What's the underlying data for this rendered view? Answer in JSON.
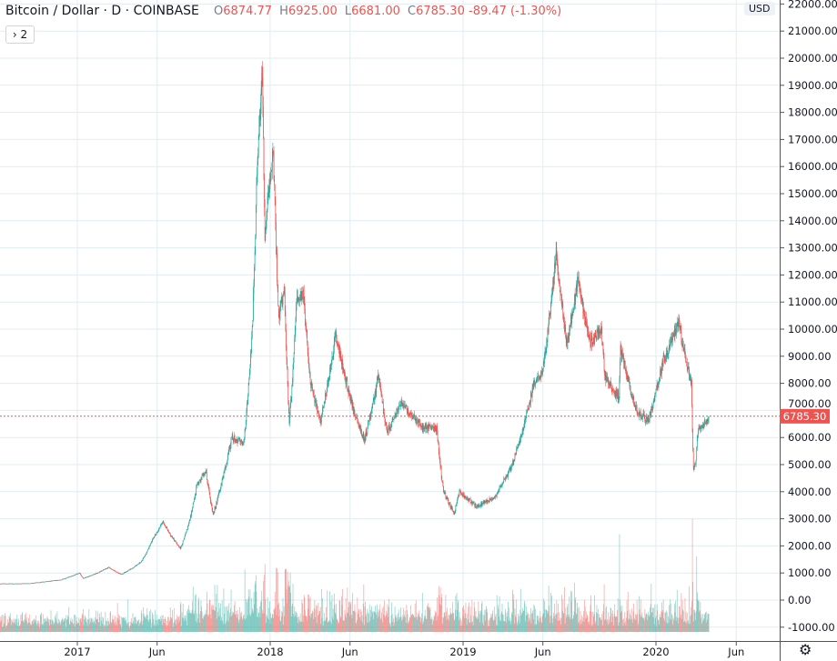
{
  "legend": {
    "title": "Bitcoin / Dollar · D · COINBASE",
    "open_label": "O",
    "open": "6874.77",
    "high_label": "H",
    "high": "6925.00",
    "low_label": "L",
    "low": "6681.00",
    "close_label": "C",
    "close": "6785.30",
    "change": "-89.47 (-1.30%)",
    "collapse_button": "› 2"
  },
  "currency_badge": "USD",
  "settings_icon": "gear-icon",
  "colors": {
    "up": "#26a69a",
    "down": "#ef5350",
    "grid": "#e1ecf2",
    "last_price": "#ef5350"
  },
  "chart_data": {
    "type": "candlestick",
    "interval": "D",
    "symbol": "Bitcoin / Dollar",
    "exchange": "COINBASE",
    "ylim": [
      -1200,
      22200
    ],
    "y_ticks": [
      "22000.00",
      "21000.00",
      "20000.00",
      "19000.00",
      "18000.00",
      "17000.00",
      "16000.00",
      "15000.00",
      "14000.00",
      "13000.00",
      "12000.00",
      "11000.00",
      "10000.00",
      "9000.00",
      "8000.00",
      "7000.00",
      "6000.00",
      "5000.00",
      "4000.00",
      "3000.00",
      "2000.00",
      "1000.00",
      "0.00",
      "-1000.00"
    ],
    "x_ticks": [
      {
        "label": "2017",
        "date": "2017-01-01"
      },
      {
        "label": "Jun",
        "date": "2017-06-01"
      },
      {
        "label": "2018",
        "date": "2018-01-01"
      },
      {
        "label": "Jun",
        "date": "2018-06-01"
      },
      {
        "label": "2019",
        "date": "2019-01-01"
      },
      {
        "label": "Jun",
        "date": "2019-06-01"
      },
      {
        "label": "2020",
        "date": "2020-01-01"
      },
      {
        "label": "Jun",
        "date": "2020-06-01"
      }
    ],
    "last_price": 6785.3,
    "last_price_label": "6785.30",
    "approx_close_path": [
      [
        "2016-07-20",
        600
      ],
      [
        "2016-10-01",
        610
      ],
      [
        "2016-12-01",
        750
      ],
      [
        "2017-01-05",
        1000
      ],
      [
        "2017-01-12",
        800
      ],
      [
        "2017-03-01",
        1200
      ],
      [
        "2017-03-25",
        950
      ],
      [
        "2017-05-01",
        1400
      ],
      [
        "2017-05-25",
        2300
      ],
      [
        "2017-06-12",
        2900
      ],
      [
        "2017-07-15",
        1900
      ],
      [
        "2017-08-15",
        4200
      ],
      [
        "2017-09-01",
        4800
      ],
      [
        "2017-09-15",
        3200
      ],
      [
        "2017-10-01",
        4300
      ],
      [
        "2017-10-20",
        6000
      ],
      [
        "2017-11-12",
        5800
      ],
      [
        "2017-11-28",
        10000
      ],
      [
        "2017-12-07",
        16000
      ],
      [
        "2017-12-17",
        19500
      ],
      [
        "2017-12-22",
        13500
      ],
      [
        "2017-12-28",
        15000
      ],
      [
        "2018-01-07",
        16500
      ],
      [
        "2018-01-17",
        10500
      ],
      [
        "2018-01-28",
        11500
      ],
      [
        "2018-02-06",
        6500
      ],
      [
        "2018-02-20",
        11200
      ],
      [
        "2018-03-05",
        11300
      ],
      [
        "2018-03-18",
        8000
      ],
      [
        "2018-04-06",
        6600
      ],
      [
        "2018-05-05",
        9800
      ],
      [
        "2018-06-01",
        7500
      ],
      [
        "2018-06-28",
        5900
      ],
      [
        "2018-07-25",
        8300
      ],
      [
        "2018-08-10",
        6200
      ],
      [
        "2018-09-05",
        7300
      ],
      [
        "2018-10-15",
        6400
      ],
      [
        "2018-11-12",
        6350
      ],
      [
        "2018-11-25",
        4000
      ],
      [
        "2018-12-15",
        3200
      ],
      [
        "2018-12-25",
        4000
      ],
      [
        "2019-01-28",
        3450
      ],
      [
        "2019-03-01",
        3800
      ],
      [
        "2019-04-02",
        4900
      ],
      [
        "2019-05-15",
        8000
      ],
      [
        "2019-06-01",
        8500
      ],
      [
        "2019-06-26",
        12900
      ],
      [
        "2019-07-16",
        9500
      ],
      [
        "2019-08-06",
        11800
      ],
      [
        "2019-08-30",
        9500
      ],
      [
        "2019-09-20",
        10000
      ],
      [
        "2019-09-26",
        8200
      ],
      [
        "2019-10-23",
        7500
      ],
      [
        "2019-10-26",
        9300
      ],
      [
        "2019-11-25",
        7000
      ],
      [
        "2019-12-18",
        6600
      ],
      [
        "2020-01-14",
        8800
      ],
      [
        "2020-02-13",
        10300
      ],
      [
        "2020-02-28",
        8700
      ],
      [
        "2020-03-08",
        8000
      ],
      [
        "2020-03-12",
        4900
      ],
      [
        "2020-03-16",
        5000
      ],
      [
        "2020-03-20",
        6200
      ],
      [
        "2020-04-10",
        6785.3
      ]
    ],
    "volume_shown": true,
    "grid": true
  }
}
